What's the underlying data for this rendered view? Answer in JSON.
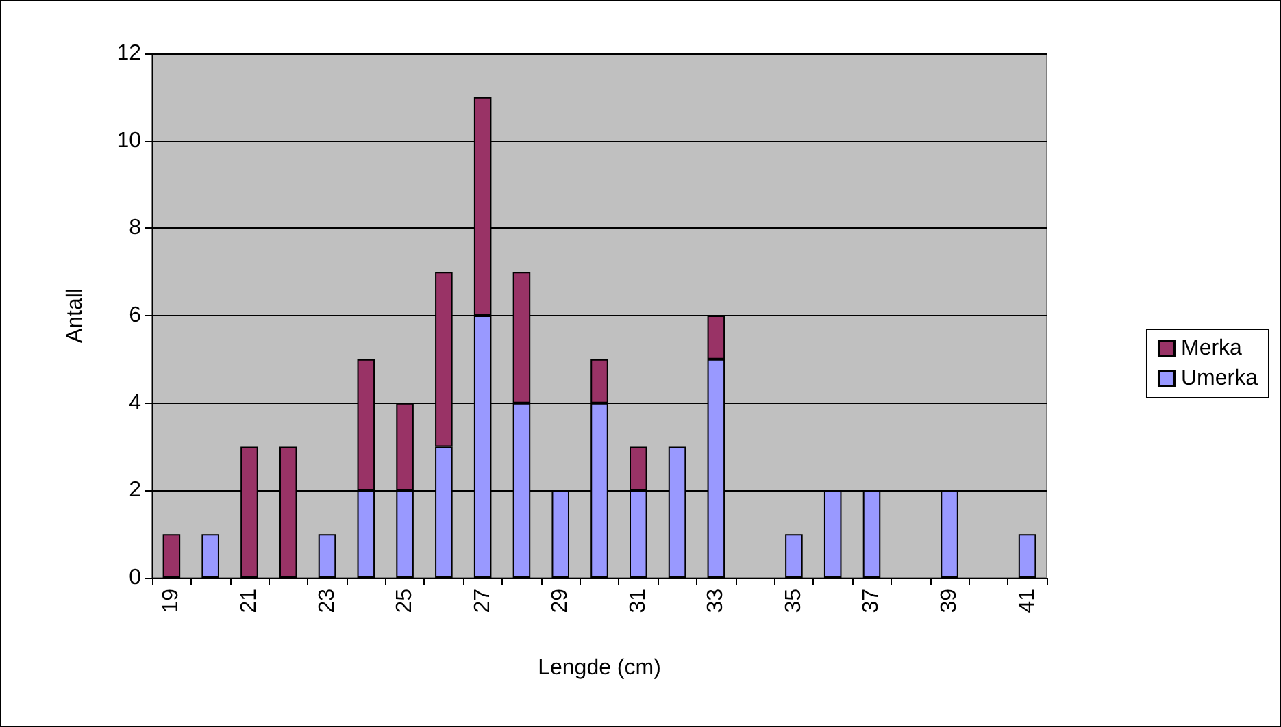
{
  "chart_data": {
    "type": "bar",
    "stacked": true,
    "xlabel": "Lengde (cm)",
    "ylabel": "Antall",
    "categories": [
      "19",
      null,
      "21",
      null,
      "23",
      null,
      "25",
      null,
      "27",
      null,
      "29",
      null,
      "31",
      null,
      "33",
      null,
      "35",
      null,
      "37",
      null,
      "39",
      null,
      "41"
    ],
    "series": [
      {
        "name": "Umerka",
        "color": "#9999ff",
        "values": [
          0,
          1,
          0,
          0,
          1,
          2,
          2,
          3,
          6,
          4,
          2,
          4,
          2,
          3,
          5,
          0,
          1,
          2,
          2,
          0,
          2,
          0,
          1
        ]
      },
      {
        "name": "Merka",
        "color": "#993366",
        "values": [
          1,
          0,
          3,
          3,
          0,
          3,
          2,
          4,
          5,
          3,
          0,
          1,
          1,
          0,
          1,
          0,
          0,
          0,
          0,
          0,
          0,
          0,
          0
        ]
      }
    ],
    "ylim": [
      0,
      12
    ],
    "yticks": [
      0,
      2,
      4,
      6,
      8,
      10,
      12
    ],
    "grid": "y",
    "legend": "right"
  }
}
